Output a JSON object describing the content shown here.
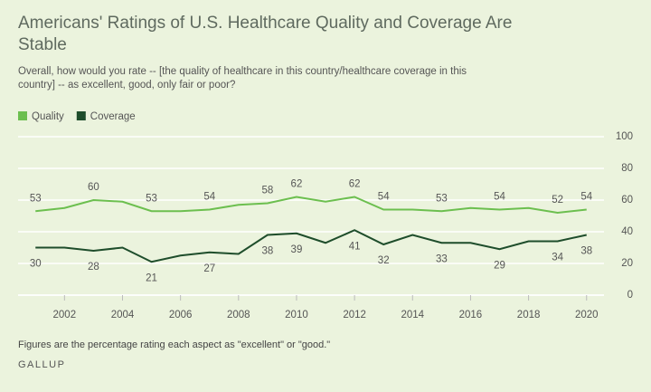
{
  "chart_data": {
    "type": "line",
    "title": "Americans' Ratings of U.S. Healthcare Quality and Coverage Are Stable",
    "subtitle": "Overall, how would you rate -- [the quality of healthcare in this country/healthcare coverage in this country] -- as excellent, good, only fair or poor?",
    "note": "Figures are the percentage rating each aspect as \"excellent\" or \"good.\"",
    "source": "GALLUP",
    "x": [
      2001,
      2002,
      2003,
      2004,
      2005,
      2006,
      2007,
      2008,
      2009,
      2010,
      2011,
      2012,
      2013,
      2014,
      2015,
      2016,
      2017,
      2018,
      2019,
      2020
    ],
    "series": [
      {
        "name": "Quality",
        "color": "#6cbf4f",
        "values": [
          53,
          55,
          60,
          59,
          53,
          53,
          54,
          57,
          58,
          62,
          59,
          62,
          54,
          54,
          53,
          55,
          54,
          55,
          52,
          54
        ],
        "value_labels": [
          "53",
          null,
          "60",
          null,
          "53",
          null,
          "54",
          null,
          "58",
          "62",
          null,
          "62",
          "54",
          null,
          "53",
          null,
          "54",
          null,
          "52",
          "54"
        ]
      },
      {
        "name": "Coverage",
        "color": "#1e4d2b",
        "values": [
          30,
          30,
          28,
          30,
          21,
          25,
          27,
          26,
          38,
          39,
          33,
          41,
          32,
          38,
          33,
          33,
          29,
          34,
          34,
          38
        ],
        "value_labels": [
          "30",
          null,
          "28",
          null,
          "21",
          null,
          "27",
          null,
          "38",
          "39",
          null,
          "41",
          "32",
          null,
          "33",
          null,
          "29",
          null,
          "34",
          "38"
        ]
      }
    ],
    "xlim": [
      2000.4,
      2020.6
    ],
    "xticks": [
      2002,
      2004,
      2006,
      2008,
      2010,
      2012,
      2014,
      2016,
      2018,
      2020
    ],
    "ylim": [
      0,
      100
    ],
    "yticks": [
      0,
      20,
      40,
      60,
      80,
      100
    ],
    "grid": true,
    "legend": "top-left"
  }
}
